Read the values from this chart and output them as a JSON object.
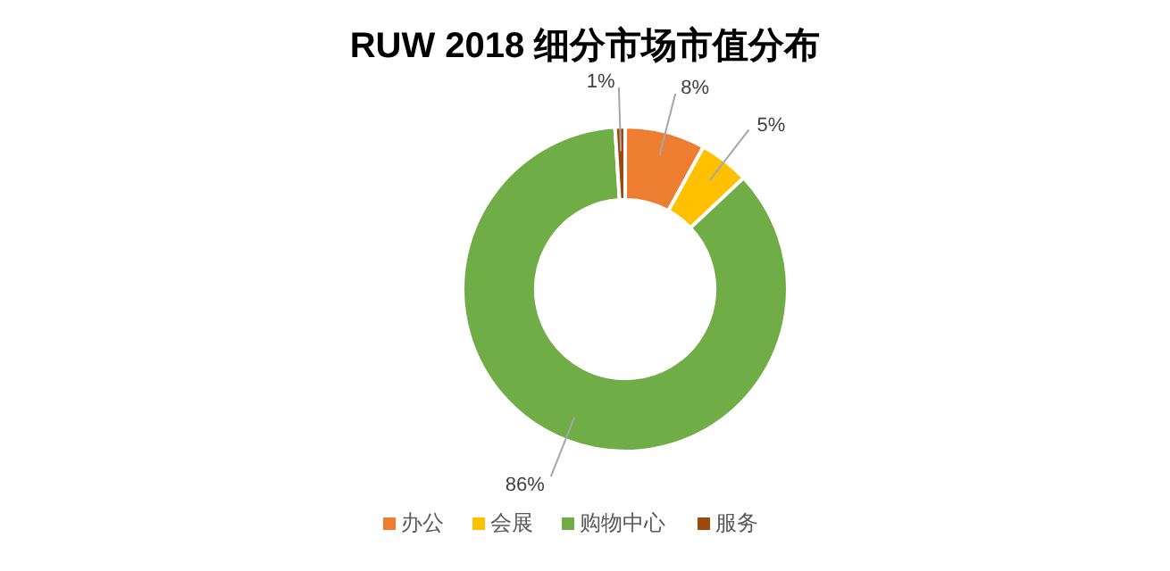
{
  "chart_data": {
    "type": "donut",
    "title": "RUW 2018 细分市场市值分布",
    "categories": [
      "办公",
      "会展",
      "购物中心",
      "服务"
    ],
    "values": [
      8,
      5,
      86,
      1
    ],
    "colors": [
      "#ed7d31",
      "#ffc000",
      "#70ad47",
      "#9e480e"
    ],
    "value_labels": [
      "8%",
      "5%",
      "86%",
      "1%"
    ],
    "legend": "bottom"
  }
}
